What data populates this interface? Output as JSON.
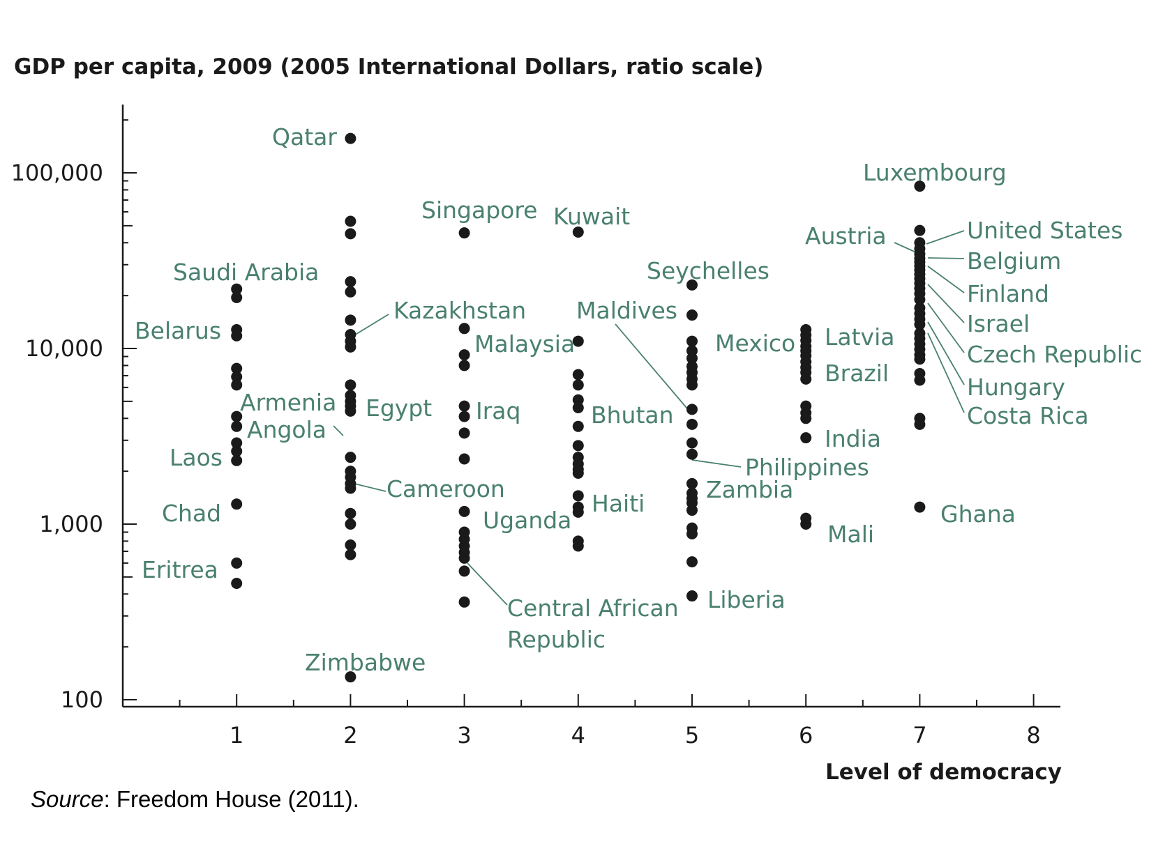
{
  "chart_data": {
    "type": "scatter",
    "title": "GDP per capita, 2009 (2005 International Dollars, ratio scale)",
    "xlabel": "Level of democracy",
    "ylabel": "GDP per capita, 2009 (2005 International Dollars, ratio scale)",
    "y_scale": "log",
    "xlim": [
      0,
      8.2
    ],
    "ylim": [
      100,
      250000
    ],
    "x_ticks": [
      1,
      2,
      3,
      4,
      5,
      6,
      7,
      8
    ],
    "y_ticks": [
      100,
      1000,
      10000,
      100000
    ],
    "y_tick_labels": [
      "100",
      "1,000",
      "10,000",
      "100,000"
    ],
    "grid": false,
    "legend": "none",
    "source_label": "Source",
    "source_text": ": Freedom House (2011).",
    "points": [
      [
        1,
        21800
      ],
      [
        1,
        19500
      ],
      [
        1,
        12800
      ],
      [
        1,
        11800
      ],
      [
        1,
        7700
      ],
      [
        1,
        6900
      ],
      [
        1,
        6200
      ],
      [
        1,
        4100
      ],
      [
        1,
        3600
      ],
      [
        1,
        2900
      ],
      [
        1,
        2600
      ],
      [
        1,
        2300
      ],
      [
        1,
        1300
      ],
      [
        1,
        600
      ],
      [
        1,
        460
      ],
      [
        2,
        157000
      ],
      [
        2,
        53000
      ],
      [
        2,
        45000
      ],
      [
        2,
        24000
      ],
      [
        2,
        21000
      ],
      [
        2,
        14500
      ],
      [
        2,
        12000
      ],
      [
        2,
        11000
      ],
      [
        2,
        10200
      ],
      [
        2,
        6200
      ],
      [
        2,
        5400
      ],
      [
        2,
        5000
      ],
      [
        2,
        4700
      ],
      [
        2,
        4400
      ],
      [
        2,
        2400
      ],
      [
        2,
        2000
      ],
      [
        2,
        1850
      ],
      [
        2,
        1700
      ],
      [
        2,
        1600
      ],
      [
        2,
        1150
      ],
      [
        2,
        1000
      ],
      [
        2,
        760
      ],
      [
        2,
        670
      ],
      [
        2,
        135
      ],
      [
        3,
        45500
      ],
      [
        3,
        13000
      ],
      [
        3,
        9200
      ],
      [
        3,
        8000
      ],
      [
        3,
        4700
      ],
      [
        3,
        4100
      ],
      [
        3,
        3300
      ],
      [
        3,
        2350
      ],
      [
        3,
        1180
      ],
      [
        3,
        900
      ],
      [
        3,
        820
      ],
      [
        3,
        750
      ],
      [
        3,
        690
      ],
      [
        3,
        640
      ],
      [
        3,
        540
      ],
      [
        3,
        360
      ],
      [
        4,
        46000
      ],
      [
        4,
        11000
      ],
      [
        4,
        7100
      ],
      [
        4,
        6200
      ],
      [
        4,
        5100
      ],
      [
        4,
        4600
      ],
      [
        4,
        3600
      ],
      [
        4,
        2800
      ],
      [
        4,
        2400
      ],
      [
        4,
        2200
      ],
      [
        4,
        2050
      ],
      [
        4,
        1950
      ],
      [
        4,
        1450
      ],
      [
        4,
        1250
      ],
      [
        4,
        1170
      ],
      [
        4,
        800
      ],
      [
        4,
        750
      ],
      [
        5,
        23000
      ],
      [
        5,
        15500
      ],
      [
        5,
        11000
      ],
      [
        5,
        9700
      ],
      [
        5,
        8800
      ],
      [
        5,
        7900
      ],
      [
        5,
        7300
      ],
      [
        5,
        6700
      ],
      [
        5,
        6200
      ],
      [
        5,
        4500
      ],
      [
        5,
        3700
      ],
      [
        5,
        2900
      ],
      [
        5,
        2500
      ],
      [
        5,
        1700
      ],
      [
        5,
        1500
      ],
      [
        5,
        1400
      ],
      [
        5,
        1320
      ],
      [
        5,
        1200
      ],
      [
        5,
        950
      ],
      [
        5,
        880
      ],
      [
        5,
        610
      ],
      [
        5,
        390
      ],
      [
        6,
        12800
      ],
      [
        6,
        11900
      ],
      [
        6,
        11100
      ],
      [
        6,
        10300
      ],
      [
        6,
        9700
      ],
      [
        6,
        9100
      ],
      [
        6,
        8400
      ],
      [
        6,
        7800
      ],
      [
        6,
        7300
      ],
      [
        6,
        6700
      ],
      [
        6,
        4700
      ],
      [
        6,
        4300
      ],
      [
        6,
        4000
      ],
      [
        6,
        3100
      ],
      [
        6,
        1080
      ],
      [
        6,
        1000
      ],
      [
        7,
        84000
      ],
      [
        7,
        47000
      ],
      [
        7,
        40000
      ],
      [
        7,
        37000
      ],
      [
        7,
        34500
      ],
      [
        7,
        32500
      ],
      [
        7,
        31000
      ],
      [
        7,
        29500
      ],
      [
        7,
        28000
      ],
      [
        7,
        26500
      ],
      [
        7,
        25000
      ],
      [
        7,
        23500
      ],
      [
        7,
        22000
      ],
      [
        7,
        20500
      ],
      [
        7,
        19000
      ],
      [
        7,
        17000
      ],
      [
        7,
        15800
      ],
      [
        7,
        14700
      ],
      [
        7,
        13700
      ],
      [
        7,
        12200
      ],
      [
        7,
        11400
      ],
      [
        7,
        10600
      ],
      [
        7,
        9900
      ],
      [
        7,
        9200
      ],
      [
        7,
        8700
      ],
      [
        7,
        7200
      ],
      [
        7,
        6600
      ],
      [
        7,
        4000
      ],
      [
        7,
        3700
      ],
      [
        7,
        1250
      ]
    ],
    "labels": [
      {
        "text": "Qatar"
      },
      {
        "text": "Singapore"
      },
      {
        "text": "Kuwait"
      },
      {
        "text": "Luxembourg"
      },
      {
        "text": "Saudi Arabia"
      },
      {
        "text": "Belarus"
      },
      {
        "text": "Armenia"
      },
      {
        "text": "Angola"
      },
      {
        "text": "Laos"
      },
      {
        "text": "Chad"
      },
      {
        "text": "Eritrea"
      },
      {
        "text": "Kazakhstan"
      },
      {
        "text": "Egypt"
      },
      {
        "text": "Cameroon"
      },
      {
        "text": "Zimbabwe"
      },
      {
        "text": "Malaysia"
      },
      {
        "text": "Iraq"
      },
      {
        "text": "Uganda"
      },
      {
        "text": "Central African"
      },
      {
        "text": "Republic"
      },
      {
        "text": "Maldives"
      },
      {
        "text": "Bhutan"
      },
      {
        "text": "Haiti"
      },
      {
        "text": "Seychelles"
      },
      {
        "text": "Mexico"
      },
      {
        "text": "Philippines"
      },
      {
        "text": "Zambia"
      },
      {
        "text": "Liberia"
      },
      {
        "text": "Latvia"
      },
      {
        "text": "Brazil"
      },
      {
        "text": "India"
      },
      {
        "text": "Mali"
      },
      {
        "text": "Austria"
      },
      {
        "text": "United States"
      },
      {
        "text": "Belgium"
      },
      {
        "text": "Finland"
      },
      {
        "text": "Israel"
      },
      {
        "text": "Czech Republic"
      },
      {
        "text": "Hungary"
      },
      {
        "text": "Costa Rica"
      },
      {
        "text": "Ghana"
      }
    ]
  }
}
